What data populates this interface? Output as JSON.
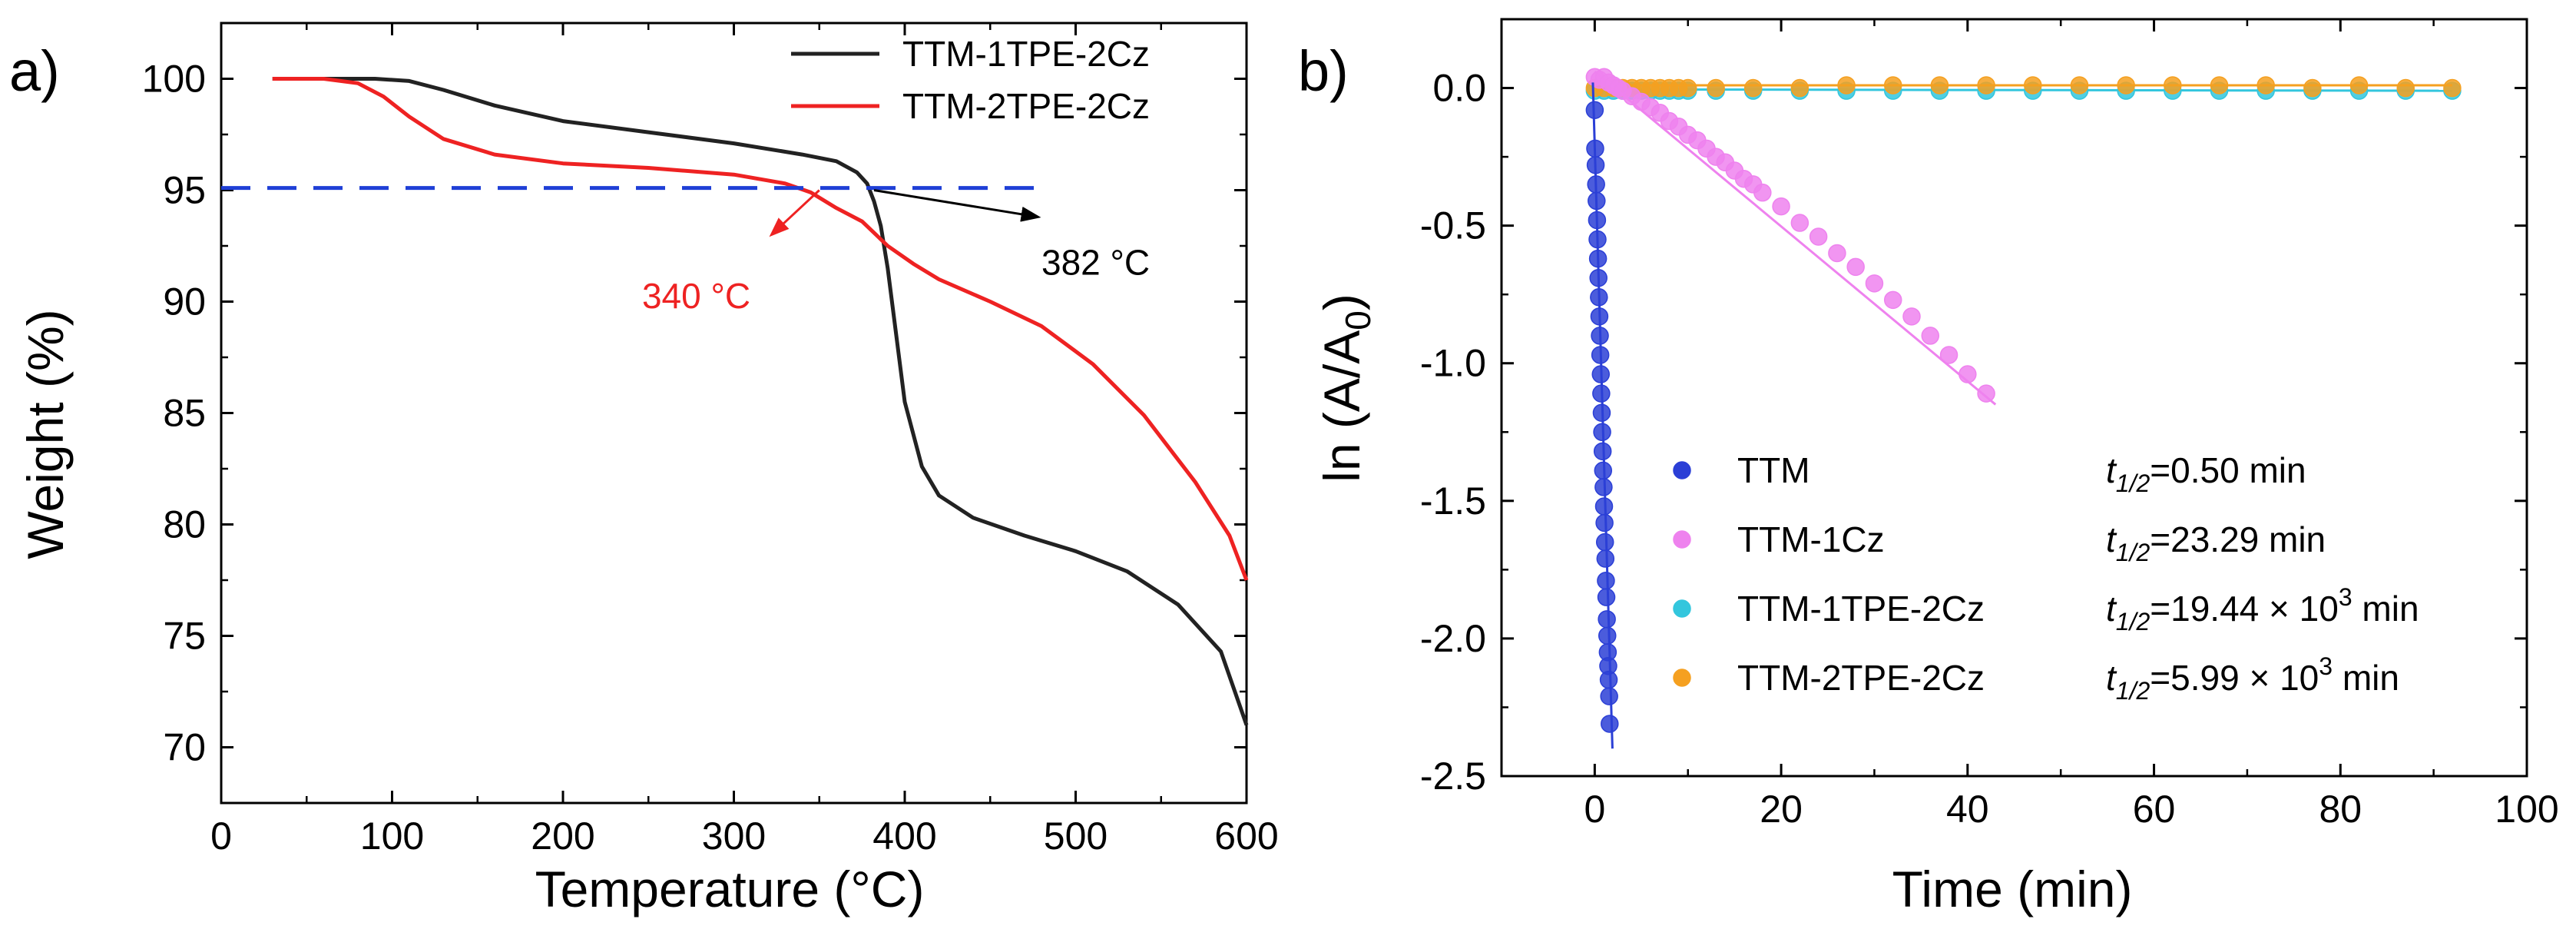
{
  "chart_data": [
    {
      "panel_label": "a)",
      "type": "line",
      "xlabel": "Temperature (°C)",
      "ylabel": "Weight (%)",
      "xlim": [
        0,
        600
      ],
      "ylim": [
        67.5,
        102.5
      ],
      "xticks": [
        0,
        100,
        200,
        300,
        400,
        500,
        600
      ],
      "yticks": [
        70,
        75,
        80,
        85,
        90,
        95,
        100
      ],
      "series": [
        {
          "name": "TTM-1TPE-2Cz",
          "color": "#222222",
          "x": [
            30,
            60,
            90,
            110,
            130,
            160,
            200,
            250,
            300,
            340,
            360,
            372,
            378,
            382,
            386,
            390,
            395,
            400,
            410,
            420,
            440,
            470,
            500,
            530,
            560,
            585,
            600
          ],
          "y": [
            100,
            100,
            100,
            99.9,
            99.5,
            98.8,
            98.1,
            97.6,
            97.1,
            96.6,
            96.3,
            95.8,
            95.3,
            94.5,
            93.4,
            91.5,
            88.5,
            85.5,
            82.6,
            81.3,
            80.3,
            79.5,
            78.8,
            77.9,
            76.4,
            74.3,
            71.0
          ]
        },
        {
          "name": "TTM-2TPE-2Cz",
          "color": "#ee2222",
          "x": [
            30,
            60,
            80,
            95,
            110,
            130,
            160,
            200,
            250,
            300,
            330,
            345,
            360,
            375,
            390,
            405,
            420,
            450,
            480,
            510,
            540,
            570,
            590,
            600
          ],
          "y": [
            100,
            100,
            99.8,
            99.2,
            98.3,
            97.3,
            96.6,
            96.2,
            96.0,
            95.7,
            95.3,
            94.9,
            94.2,
            93.6,
            92.5,
            91.7,
            91.0,
            90.0,
            88.9,
            87.2,
            84.9,
            81.9,
            79.5,
            77.5
          ]
        },
        {
          "name": "95% threshold",
          "color": "#1f3fd6",
          "style": "dashed",
          "x": [
            0,
            480
          ],
          "y": [
            95.1,
            95.1
          ]
        }
      ],
      "annotations": [
        {
          "text": "340 °C",
          "color": "#ee2222",
          "x": 350,
          "y": 95.0,
          "text_x": 278,
          "text_y": 89.7
        },
        {
          "text": "382 °C",
          "color": "#000000",
          "x": 382,
          "y": 95.0,
          "text_x": 480,
          "text_y": 91.2
        }
      ],
      "legend": "top-right"
    },
    {
      "panel_label": "b)",
      "type": "scatter",
      "xlabel": "Time (min)",
      "ylabel": "ln (A/A0)",
      "ylabel_parts": [
        "ln (A/A",
        "0",
        ")"
      ],
      "xlim": [
        -10,
        100
      ],
      "ylim": [
        -2.5,
        0.25
      ],
      "xticks": [
        0,
        20,
        40,
        60,
        80,
        100
      ],
      "yticks": [
        0.0,
        -0.5,
        -1.0,
        -1.5,
        -2.0,
        -2.5
      ],
      "ytick_labels": [
        "0.0",
        "-0.5",
        "-1.0",
        "-1.5",
        "-2.0",
        "-2.5"
      ],
      "series": [
        {
          "name": "TTM",
          "color": "#2b3fd6",
          "t_half": [
            "t",
            "1/2",
            "=0.50 min"
          ],
          "x": [
            0.0,
            0.05,
            0.1,
            0.15,
            0.2,
            0.25,
            0.3,
            0.35,
            0.4,
            0.45,
            0.5,
            0.55,
            0.6,
            0.65,
            0.7,
            0.75,
            0.8,
            0.85,
            0.9,
            0.95,
            1.0,
            1.05,
            1.1,
            1.15,
            1.2,
            1.25,
            1.3,
            1.35,
            1.4,
            1.45,
            1.5,
            1.55,
            1.6
          ],
          "y": [
            -0.08,
            -0.22,
            -0.28,
            -0.35,
            -0.41,
            -0.48,
            -0.55,
            -0.62,
            -0.69,
            -0.76,
            -0.83,
            -0.9,
            -0.97,
            -1.04,
            -1.11,
            -1.18,
            -1.25,
            -1.32,
            -1.39,
            -1.45,
            -1.52,
            -1.58,
            -1.65,
            -1.71,
            -1.79,
            -1.85,
            -1.93,
            -1.99,
            -2.05,
            -2.1,
            -2.15,
            -2.21,
            -2.31
          ],
          "fit": {
            "x": [
              -0.2,
              1.9
            ],
            "y": [
              0.02,
              -2.4
            ]
          }
        },
        {
          "name": "TTM-1Cz",
          "color": "#ee82ee",
          "t_half": [
            "t",
            "1/2",
            "=23.29 min"
          ],
          "x": [
            0,
            0.5,
            1,
            1.5,
            2,
            2.5,
            3,
            4,
            5,
            6,
            7,
            8,
            9,
            10,
            11,
            12,
            13,
            14,
            15,
            16,
            17,
            18,
            20,
            22,
            24,
            26,
            28,
            30,
            32,
            34,
            36,
            38,
            40,
            42
          ],
          "y": [
            0.04,
            0.03,
            0.04,
            0.02,
            0.01,
            0.0,
            -0.01,
            -0.03,
            -0.05,
            -0.07,
            -0.09,
            -0.12,
            -0.14,
            -0.17,
            -0.19,
            -0.22,
            -0.25,
            -0.27,
            -0.3,
            -0.33,
            -0.35,
            -0.38,
            -0.43,
            -0.49,
            -0.54,
            -0.6,
            -0.65,
            -0.71,
            -0.77,
            -0.83,
            -0.9,
            -0.97,
            -1.04,
            -1.11
          ],
          "fit": {
            "x": [
              0,
              43
            ],
            "y": [
              0.06,
              -1.15
            ]
          }
        },
        {
          "name": "TTM-1TPE-2Cz",
          "color": "#33c6dd",
          "t_half": [
            "t",
            "1/2",
            "=19.44 × 10",
            "3",
            " min"
          ],
          "x": [
            0,
            1,
            2,
            3,
            4,
            5,
            6,
            7,
            8,
            9,
            10,
            13,
            17,
            22,
            27,
            32,
            37,
            42,
            47,
            52,
            57,
            62,
            67,
            72,
            77,
            82,
            87,
            92
          ],
          "y": [
            -0.01,
            -0.01,
            -0.01,
            -0.01,
            -0.01,
            -0.01,
            -0.01,
            -0.01,
            -0.01,
            -0.01,
            -0.01,
            -0.01,
            -0.01,
            -0.01,
            -0.01,
            -0.01,
            -0.01,
            -0.01,
            -0.01,
            -0.01,
            -0.01,
            -0.01,
            -0.01,
            -0.01,
            -0.01,
            -0.01,
            -0.01,
            -0.01
          ],
          "fit": {
            "x": [
              0,
              92
            ],
            "y": [
              -0.005,
              -0.01
            ]
          }
        },
        {
          "name": "TTM-2TPE-2Cz",
          "color": "#f5a020",
          "t_half": [
            "t",
            "1/2",
            "=5.99 × 10",
            "3",
            " min"
          ],
          "x": [
            0,
            1,
            2,
            3,
            4,
            5,
            6,
            7,
            8,
            9,
            10,
            13,
            17,
            22,
            27,
            32,
            37,
            42,
            47,
            52,
            57,
            62,
            67,
            72,
            77,
            82,
            87,
            92
          ],
          "y": [
            0.0,
            0.0,
            0.0,
            0.0,
            0.0,
            0.0,
            0.0,
            0.0,
            0.0,
            0.0,
            0.0,
            0.0,
            0.0,
            0.0,
            0.01,
            0.01,
            0.01,
            0.01,
            0.01,
            0.01,
            0.01,
            0.01,
            0.01,
            0.01,
            0.0,
            0.01,
            0.0,
            0.0
          ],
          "fit": {
            "x": [
              0,
              92
            ],
            "y": [
              0.01,
              0.01
            ]
          }
        }
      ],
      "legend": "bottom-right"
    }
  ]
}
